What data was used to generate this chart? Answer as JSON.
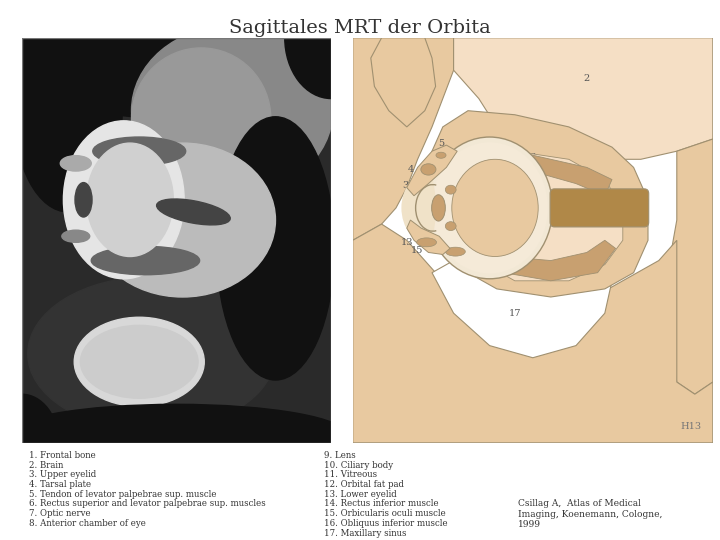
{
  "title": "Sagittales MRT der Orbita",
  "title_fontsize": 14,
  "background_color": "#ffffff",
  "legend_left": [
    "1. Frontal bone",
    "2. Brain",
    "3. Upper eyelid",
    "4. Tarsal plate",
    "5. Tendon of levator palpebrae sup. muscle",
    "6. Rectus superior and levator palpebrae sup. muscles",
    "7. Optic nerve",
    "8. Anterior chamber of eye"
  ],
  "legend_right": [
    "9. Lens",
    "10. Ciliary body",
    "11. Vitreous",
    "12. Orbital fat pad",
    "13. Lower eyelid",
    "14. Rectus inferior muscle",
    "15. Orbicularis oculi muscle",
    "16. Obliquus inferior muscle",
    "17. Maxillary sinus"
  ],
  "citation": "Csillag A,  Atlas of Medical\nImaging, Koenemann, Cologne,\n1999",
  "plate_id": "H13",
  "skin_light": "#f5dfc5",
  "skin_medium": "#e8c9a0",
  "skin_dark": "#c8a070",
  "brown_dark": "#b08848",
  "white_color": "#ffffff",
  "outline_color": "#a09070",
  "label_color": "#555555",
  "label_fontsize": 7
}
